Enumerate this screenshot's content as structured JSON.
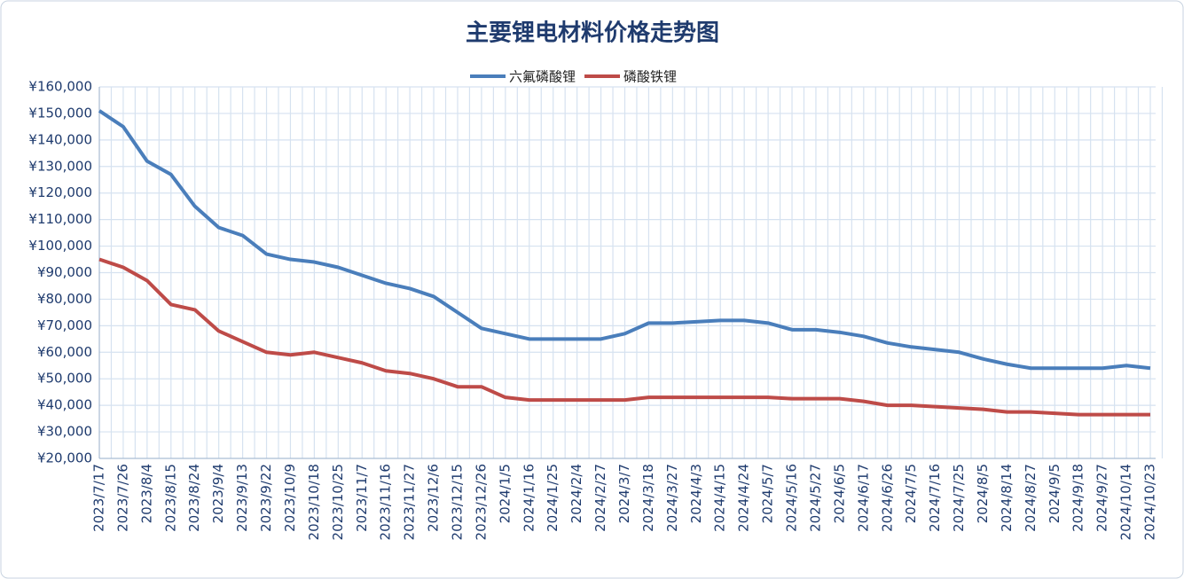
{
  "chart_data": {
    "type": "line",
    "title": "主要锂电材料价格走势图",
    "categories": [
      "2023/7/17",
      "2023/7/26",
      "2023/8/4",
      "2023/8/15",
      "2023/8/24",
      "2023/9/4",
      "2023/9/13",
      "2023/9/22",
      "2023/10/9",
      "2023/10/18",
      "2023/10/25",
      "2023/11/7",
      "2023/11/16",
      "2023/11/27",
      "2023/12/6",
      "2023/12/15",
      "2023/12/26",
      "2024/1/5",
      "2024/1/16",
      "2024/1/25",
      "2024/2/4",
      "2024/2/27",
      "2024/3/7",
      "2024/3/18",
      "2024/3/27",
      "2024/4/3",
      "2024/4/15",
      "2024/4/24",
      "2024/5/7",
      "2024/5/16",
      "2024/5/27",
      "2024/6/5",
      "2024/6/17",
      "2024/6/26",
      "2024/7/5",
      "2024/7/16",
      "2024/7/25",
      "2024/8/5",
      "2024/8/14",
      "2024/8/27",
      "2024/9/5",
      "2024/9/18",
      "2024/9/27",
      "2024/10/14",
      "2024/10/23"
    ],
    "series": [
      {
        "name": "六氟磷酸锂",
        "color": "#4a7ebb",
        "values": [
          151000,
          145000,
          132000,
          127000,
          115000,
          107000,
          104000,
          97000,
          95000,
          94000,
          92000,
          89000,
          86000,
          84000,
          81000,
          75000,
          69000,
          67000,
          65000,
          65000,
          65000,
          65000,
          67000,
          71000,
          71000,
          71500,
          72000,
          72000,
          71000,
          68500,
          68500,
          67500,
          66000,
          63500,
          62000,
          61000,
          60000,
          57500,
          55500,
          54000,
          54000,
          54000,
          54000,
          55000,
          54000
        ]
      },
      {
        "name": "磷酸铁锂",
        "color": "#be4b48",
        "values": [
          95000,
          92000,
          87000,
          78000,
          76000,
          68000,
          64000,
          60000,
          59000,
          60000,
          58000,
          56000,
          53000,
          52000,
          50000,
          47000,
          47000,
          43000,
          42000,
          42000,
          42000,
          42000,
          42000,
          43000,
          43000,
          43000,
          43000,
          43000,
          43000,
          42500,
          42500,
          42500,
          41500,
          40000,
          40000,
          39500,
          39000,
          38500,
          37500,
          37500,
          37000,
          36500,
          36500,
          36500,
          36500
        ]
      }
    ],
    "ylim": [
      20000,
      160000
    ],
    "yticks": [
      {
        "value": 20000,
        "label": "¥20,000"
      },
      {
        "value": 30000,
        "label": "¥30,000"
      },
      {
        "value": 40000,
        "label": "¥40,000"
      },
      {
        "value": 50000,
        "label": "¥50,000"
      },
      {
        "value": 60000,
        "label": "¥60,000"
      },
      {
        "value": 70000,
        "label": "¥70,000"
      },
      {
        "value": 80000,
        "label": "¥80,000"
      },
      {
        "value": 90000,
        "label": "¥90,000"
      },
      {
        "value": 100000,
        "label": "¥100,000"
      },
      {
        "value": 110000,
        "label": "¥110,000"
      },
      {
        "value": 120000,
        "label": "¥120,000"
      },
      {
        "value": 130000,
        "label": "¥130,000"
      },
      {
        "value": 140000,
        "label": "¥140,000"
      },
      {
        "value": 150000,
        "label": "¥150,000"
      },
      {
        "value": 160000,
        "label": "¥160,000"
      }
    ],
    "grid": true,
    "legend": "top"
  }
}
